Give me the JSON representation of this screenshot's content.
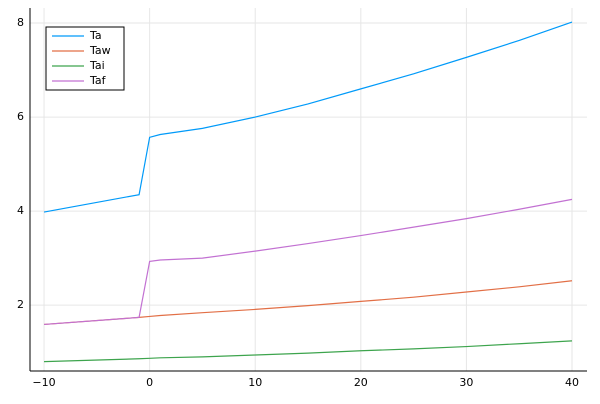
{
  "chart_data": {
    "type": "line",
    "x": [
      -10,
      -1,
      0,
      1,
      5,
      10,
      15,
      20,
      25,
      30,
      35,
      40
    ],
    "series": [
      {
        "name": "Ta",
        "color": "#009af9",
        "values": [
          3.98,
          4.35,
          5.57,
          5.63,
          5.76,
          6.0,
          6.28,
          6.6,
          6.92,
          7.27,
          7.63,
          8.02
        ]
      },
      {
        "name": "Taw",
        "color": "#e26f46",
        "values": [
          1.59,
          1.74,
          1.76,
          1.78,
          1.84,
          1.91,
          1.99,
          2.08,
          2.17,
          2.28,
          2.39,
          2.52
        ]
      },
      {
        "name": "Tai",
        "color": "#3da44d",
        "values": [
          0.8,
          0.86,
          0.87,
          0.88,
          0.9,
          0.94,
          0.98,
          1.03,
          1.07,
          1.12,
          1.18,
          1.24
        ]
      },
      {
        "name": "Taf",
        "color": "#c271d2",
        "values": [
          1.59,
          1.74,
          2.93,
          2.96,
          3.0,
          3.15,
          3.31,
          3.48,
          3.66,
          3.84,
          4.04,
          4.25
        ]
      }
    ],
    "xlim": [
      -11.33,
      41.42
    ],
    "ylim": [
      0.6,
      8.32
    ],
    "xticks": [
      {
        "value": -10,
        "label": "−10"
      },
      0,
      10,
      20,
      30,
      40
    ],
    "yticks": [
      2,
      4,
      6,
      8
    ],
    "grid": true,
    "legend": "top-left"
  }
}
